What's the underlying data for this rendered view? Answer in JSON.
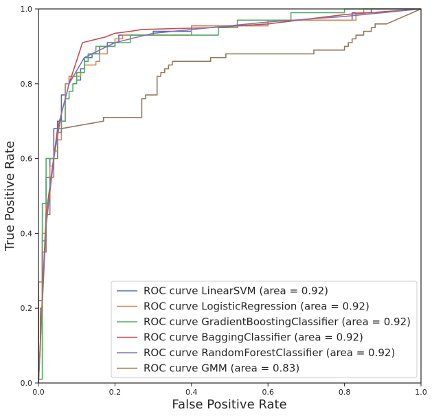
{
  "chart_data": {
    "type": "line",
    "title": "",
    "xlabel": "False Positive Rate",
    "ylabel": "True Positive Rate",
    "xlim": [
      0,
      1
    ],
    "ylim": [
      0,
      1
    ],
    "xticks": [
      "0.0",
      "0.2",
      "0.4",
      "0.6",
      "0.8",
      "1.0"
    ],
    "yticks": [
      "0.0",
      "0.2",
      "0.4",
      "0.6",
      "0.8",
      "1.0"
    ],
    "grid": false,
    "legend_position": "lower-right",
    "series": [
      {
        "name": "ROC curve LinearSVM (area = 0.92)",
        "color": "#4c72b0",
        "x": [
          0,
          0,
          0.01,
          0.01,
          0.02,
          0.02,
          0.03,
          0.03,
          0.04,
          0.04,
          0.05,
          0.05,
          0.06,
          0.06,
          0.07,
          0.07,
          0.08,
          0.08,
          0.1,
          0.1,
          0.11,
          0.11,
          0.12,
          0.12,
          0.14,
          0.14,
          0.16,
          0.16,
          0.18,
          0.18,
          0.21,
          0.21,
          0.3,
          0.3,
          0.4,
          0.4,
          0.6,
          0.6,
          0.82,
          0.82,
          0.87,
          0.87,
          1.0
        ],
        "y": [
          0,
          0.22,
          0.22,
          0.38,
          0.38,
          0.55,
          0.55,
          0.6,
          0.6,
          0.68,
          0.68,
          0.7,
          0.7,
          0.77,
          0.77,
          0.8,
          0.8,
          0.82,
          0.82,
          0.81,
          0.81,
          0.84,
          0.84,
          0.87,
          0.87,
          0.88,
          0.88,
          0.9,
          0.9,
          0.91,
          0.91,
          0.93,
          0.93,
          0.94,
          0.94,
          0.955,
          0.955,
          0.97,
          0.97,
          0.99,
          0.99,
          1.0,
          1.0
        ]
      },
      {
        "name": "ROC curve LogisticRegression (area = 0.92)",
        "color": "#dd8452",
        "x": [
          0,
          0,
          0.01,
          0.01,
          0.02,
          0.02,
          0.03,
          0.03,
          0.04,
          0.04,
          0.05,
          0.05,
          0.06,
          0.06,
          0.07,
          0.07,
          0.08,
          0.08,
          0.11,
          0.11,
          0.12,
          0.12,
          0.15,
          0.15,
          0.16,
          0.16,
          0.18,
          0.18,
          0.2,
          0.2,
          0.22,
          0.22,
          0.4,
          0.4,
          0.6,
          0.6,
          0.83,
          0.83,
          0.85,
          0.85,
          1.0
        ],
        "y": [
          0,
          0.27,
          0.27,
          0.4,
          0.4,
          0.48,
          0.48,
          0.58,
          0.58,
          0.62,
          0.62,
          0.65,
          0.65,
          0.7,
          0.7,
          0.8,
          0.8,
          0.82,
          0.82,
          0.83,
          0.83,
          0.85,
          0.85,
          0.86,
          0.86,
          0.88,
          0.88,
          0.9,
          0.9,
          0.92,
          0.92,
          0.93,
          0.93,
          0.955,
          0.955,
          0.97,
          0.97,
          0.99,
          0.99,
          1.0,
          1.0
        ]
      },
      {
        "name": "ROC curve GradientBoostingClassifier (area = 0.92)",
        "color": "#55a868",
        "x": [
          0,
          0,
          0.01,
          0.01,
          0.02,
          0.02,
          0.04,
          0.04,
          0.05,
          0.05,
          0.06,
          0.06,
          0.07,
          0.07,
          0.08,
          0.08,
          0.09,
          0.09,
          0.1,
          0.1,
          0.12,
          0.12,
          0.13,
          0.13,
          0.15,
          0.15,
          0.2,
          0.2,
          0.24,
          0.24,
          0.47,
          0.47,
          0.52,
          0.52,
          0.66,
          0.66,
          0.8,
          0.8,
          0.85,
          0.85,
          1.0
        ],
        "y": [
          0,
          0.01,
          0.01,
          0.48,
          0.48,
          0.6,
          0.6,
          0.62,
          0.62,
          0.68,
          0.68,
          0.7,
          0.7,
          0.76,
          0.76,
          0.78,
          0.78,
          0.8,
          0.8,
          0.83,
          0.83,
          0.86,
          0.86,
          0.88,
          0.88,
          0.9,
          0.9,
          0.91,
          0.91,
          0.93,
          0.93,
          0.95,
          0.95,
          0.97,
          0.97,
          0.99,
          0.99,
          1.0,
          1.0,
          1.0,
          1.0
        ]
      },
      {
        "name": "ROC curve BaggingClassifier (area = 0.92)",
        "color": "#c44e52",
        "x": [
          0,
          0.02,
          0.05,
          0.08,
          0.115,
          0.175,
          0.2,
          0.24,
          0.27,
          0.45,
          0.6,
          0.8,
          1.0
        ],
        "y": [
          0,
          0.45,
          0.68,
          0.8,
          0.91,
          0.925,
          0.935,
          0.94,
          0.945,
          0.95,
          0.96,
          0.985,
          1.0
        ]
      },
      {
        "name": "ROC curve RandomForestClassifier (area = 0.92)",
        "color": "#8172b3",
        "x": [
          0,
          0.02,
          0.04,
          0.06,
          0.08,
          0.12,
          0.2,
          0.3,
          0.45,
          0.6,
          0.8,
          1.0
        ],
        "y": [
          0,
          0.42,
          0.6,
          0.72,
          0.8,
          0.87,
          0.91,
          0.935,
          0.95,
          0.965,
          0.98,
          1.0
        ]
      },
      {
        "name": "ROC curve GMM (area = 0.83)",
        "color": "#937860",
        "x": [
          0,
          0.005,
          0.005,
          0.01,
          0.01,
          0.02,
          0.02,
          0.03,
          0.03,
          0.04,
          0.04,
          0.05,
          0.05,
          0.06,
          0.06,
          0.17,
          0.17,
          0.27,
          0.27,
          0.28,
          0.28,
          0.29,
          0.29,
          0.31,
          0.31,
          0.32,
          0.32,
          0.33,
          0.33,
          0.34,
          0.34,
          0.35,
          0.35,
          0.36,
          0.36,
          0.45,
          0.45,
          0.47,
          0.47,
          0.49,
          0.49,
          0.72,
          0.72,
          0.8,
          0.8,
          0.81,
          0.81,
          0.82,
          0.82,
          0.83,
          0.83,
          0.85,
          0.85,
          0.87,
          0.87,
          0.88,
          0.88,
          0.91,
          1.0
        ],
        "y": [
          0,
          0.1,
          0.2,
          0.2,
          0.35,
          0.35,
          0.45,
          0.45,
          0.55,
          0.55,
          0.6,
          0.6,
          0.67,
          0.67,
          0.68,
          0.7,
          0.71,
          0.71,
          0.76,
          0.76,
          0.77,
          0.77,
          0.77,
          0.77,
          0.82,
          0.82,
          0.83,
          0.83,
          0.84,
          0.84,
          0.85,
          0.85,
          0.86,
          0.86,
          0.86,
          0.86,
          0.87,
          0.87,
          0.87,
          0.87,
          0.88,
          0.88,
          0.89,
          0.89,
          0.9,
          0.9,
          0.91,
          0.91,
          0.92,
          0.92,
          0.93,
          0.93,
          0.94,
          0.94,
          0.95,
          0.95,
          0.96,
          0.96,
          1.0
        ]
      }
    ]
  }
}
